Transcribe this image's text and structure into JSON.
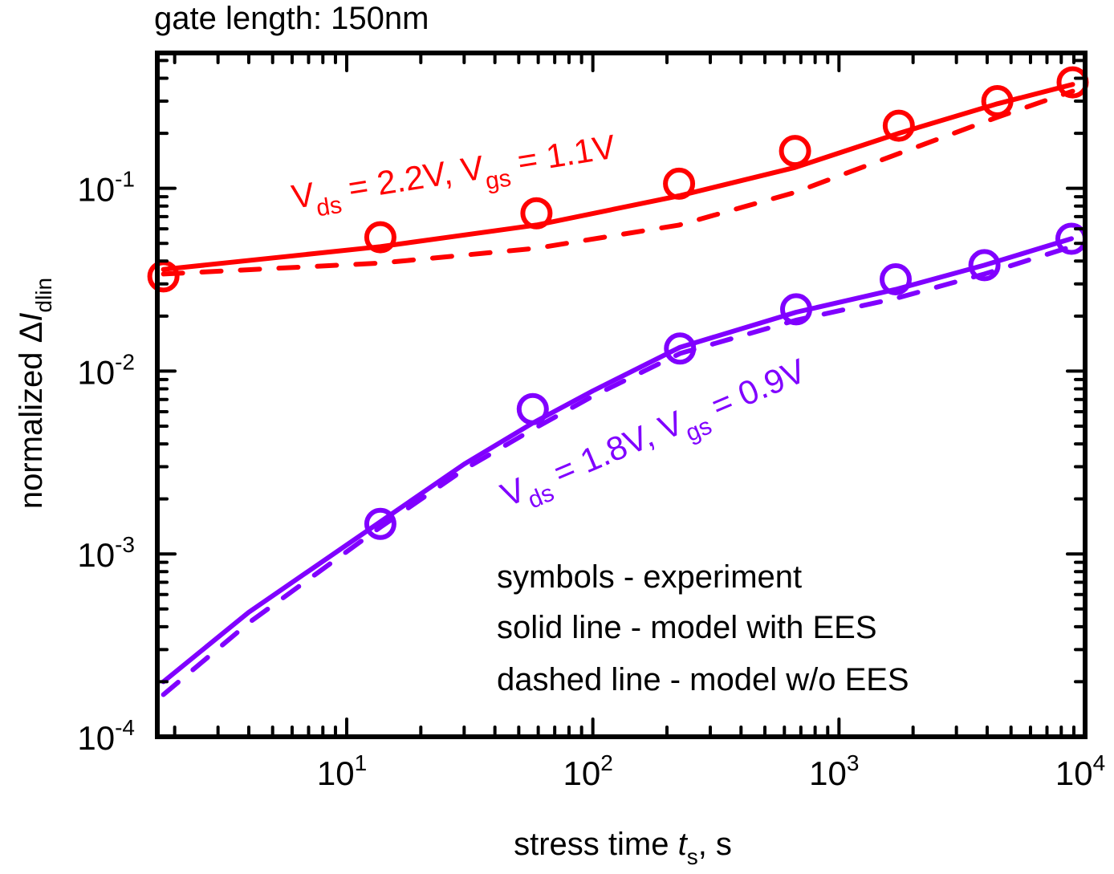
{
  "chart_data": {
    "type": "line",
    "title": "gate length: 150nm",
    "xlabel": {
      "main": "stress time ",
      "italic": "t",
      "sub": "s",
      "suffix": ", s"
    },
    "ylabel": {
      "main": "normalized Δ",
      "italic": "I",
      "sub": "dlin"
    },
    "xscale": "log",
    "yscale": "log",
    "xlim": [
      1.7,
      10000
    ],
    "ylim": [
      0.0001,
      0.55
    ],
    "xticks": [
      {
        "value": 10,
        "base": "10",
        "exp": "1"
      },
      {
        "value": 100,
        "base": "10",
        "exp": "2"
      },
      {
        "value": 1000,
        "base": "10",
        "exp": "3"
      },
      {
        "value": 10000,
        "base": "10",
        "exp": "4"
      }
    ],
    "yticks": [
      {
        "value": 0.1,
        "base": "10",
        "exp": "-1"
      },
      {
        "value": 0.01,
        "base": "10",
        "exp": "-2"
      },
      {
        "value": 0.001,
        "base": "10",
        "exp": "-3"
      },
      {
        "value": 0.0001,
        "base": "10",
        "exp": "-4"
      }
    ],
    "grid": false,
    "series": [
      {
        "name": "Vds = 2.2V, Vgs = 1.1V",
        "label": {
          "v1": "V",
          "sub1": "ds",
          "mid": " = 2.2V, V",
          "sub2": "gs",
          "end": " = 1.1V"
        },
        "color": "#ff0000",
        "experiment": {
          "x": [
            1.8,
            13.7,
            59,
            224,
            663,
            1750,
            4400,
            8900
          ],
          "y": [
            0.033,
            0.054,
            0.073,
            0.106,
            0.16,
            0.22,
            0.3,
            0.38
          ]
        },
        "model_with_EES": {
          "x": [
            1.8,
            13.7,
            59,
            224,
            663,
            1750,
            4400,
            8900
          ],
          "y": [
            0.036,
            0.048,
            0.063,
            0.091,
            0.13,
            0.2,
            0.29,
            0.37
          ]
        },
        "model_without_EES": {
          "x": [
            1.8,
            13.7,
            59,
            224,
            663,
            1750,
            4400,
            8900
          ],
          "y": [
            0.034,
            0.039,
            0.047,
            0.063,
            0.095,
            0.155,
            0.245,
            0.34
          ]
        }
      },
      {
        "name": "Vds = 1.8V, Vgs = 0.9V",
        "label": {
          "v1": "V",
          "sub1": "ds",
          "mid": " = 1.8V, V",
          "sub2": "gs",
          "end": " = 0.9V"
        },
        "color": "#8000ff",
        "experiment": {
          "x": [
            13.7,
            57,
            226,
            670,
            1700,
            3900,
            8800
          ],
          "y": [
            0.00146,
            0.0062,
            0.0133,
            0.0218,
            0.0318,
            0.038,
            0.053
          ]
        },
        "model_with_EES": {
          "x": [
            1.8,
            4,
            13.7,
            30,
            57,
            100,
            226,
            670,
            1700,
            3900,
            8800
          ],
          "y": [
            0.0002,
            0.00048,
            0.0015,
            0.0031,
            0.0052,
            0.0078,
            0.0135,
            0.021,
            0.028,
            0.038,
            0.053
          ]
        },
        "model_without_EES": {
          "x": [
            1.8,
            4,
            13.7,
            30,
            57,
            100,
            226,
            670,
            1700,
            3900,
            8800
          ],
          "y": [
            0.00017,
            0.00042,
            0.0014,
            0.0029,
            0.0048,
            0.0073,
            0.0125,
            0.019,
            0.025,
            0.034,
            0.048
          ]
        }
      }
    ],
    "annotations": [
      "symbols - experiment",
      "solid line - model with EES",
      "dashed line - model w/o EES"
    ]
  }
}
